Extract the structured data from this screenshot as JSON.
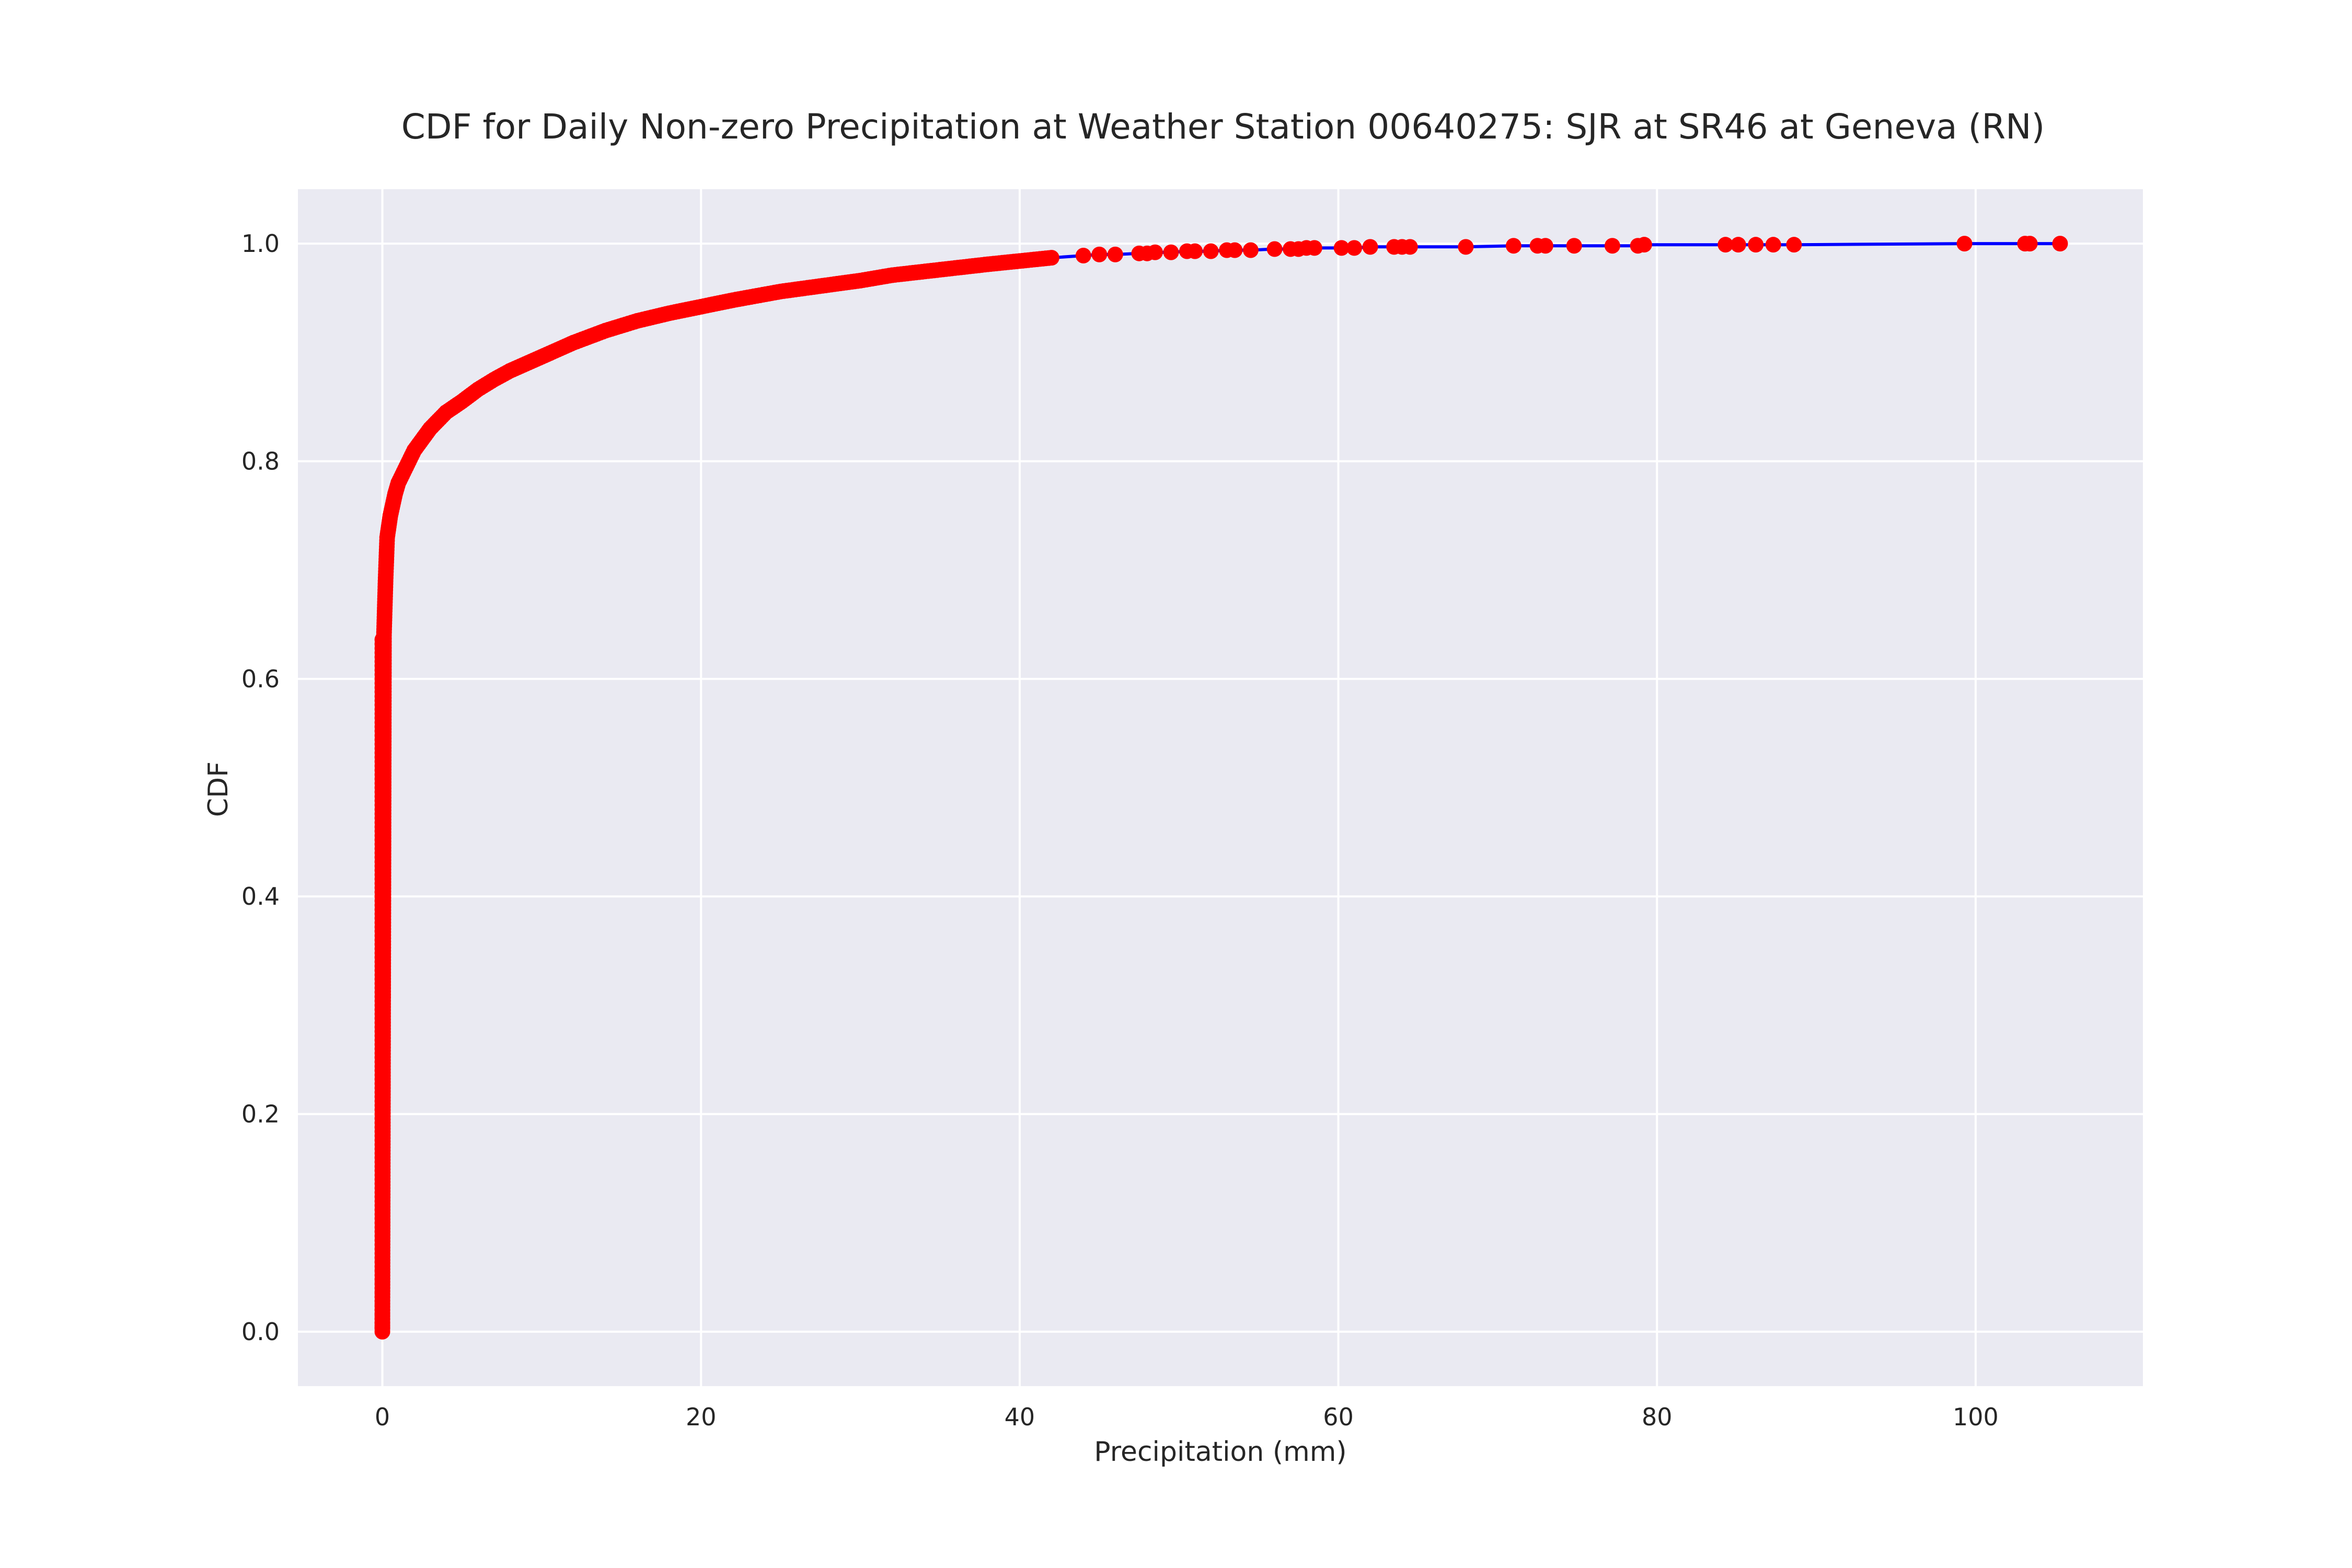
{
  "chart_data": {
    "type": "line",
    "title": "CDF for Daily Non-zero Precipitation at Weather Station 00640275: SJR at SR46 at Geneva (RN)",
    "xlabel": "Precipitation (mm)",
    "ylabel": "CDF",
    "xlim": [
      -5.3,
      110.5
    ],
    "ylim": [
      -0.05,
      1.05
    ],
    "grid": true,
    "x_ticks": [
      "0",
      "20",
      "40",
      "60",
      "80",
      "100"
    ],
    "y_ticks": [
      "0.0",
      "0.2",
      "0.4",
      "0.6",
      "0.8",
      "1.0"
    ],
    "colors": {
      "background": "#eaeaf2",
      "line": "#0000ff",
      "marker": "#ff0000"
    },
    "series": [
      {
        "x": [
          0,
          0.1,
          0.2,
          0.3,
          0.5,
          0.8,
          1.0,
          1.5,
          2.0,
          2.5,
          3.0,
          4.0,
          5.0,
          6.0,
          7.0,
          8.0,
          10.0,
          12.0,
          14.0,
          16.0,
          18.0,
          20.0,
          22.0,
          25.0,
          28.0,
          30.0,
          32.0,
          35.0,
          38.0,
          40.0,
          42.0,
          44.0,
          45.0,
          46.0,
          47.5,
          48.0,
          48.5,
          49.5,
          50.5,
          51.0,
          52.0,
          53.0,
          53.5,
          54.5,
          56.0,
          57.0,
          57.5,
          58.0,
          58.5,
          60.2,
          61.0,
          62.0,
          63.5,
          64.0,
          64.5,
          68.0,
          71.0,
          72.5,
          73.0,
          74.8,
          77.2,
          78.8,
          79.2,
          84.3,
          85.1,
          86.2,
          87.3,
          88.6,
          99.3,
          103.1,
          103.4,
          105.3
        ],
        "y": [
          0.0,
          0.64,
          0.69,
          0.73,
          0.75,
          0.77,
          0.78,
          0.795,
          0.81,
          0.82,
          0.83,
          0.845,
          0.855,
          0.866,
          0.875,
          0.883,
          0.896,
          0.909,
          0.92,
          0.929,
          0.936,
          0.942,
          0.948,
          0.956,
          0.962,
          0.966,
          0.971,
          0.976,
          0.981,
          0.984,
          0.987,
          0.989,
          0.99,
          0.99,
          0.991,
          0.991,
          0.992,
          0.992,
          0.993,
          0.993,
          0.993,
          0.994,
          0.994,
          0.994,
          0.995,
          0.995,
          0.995,
          0.996,
          0.996,
          0.996,
          0.996,
          0.997,
          0.997,
          0.997,
          0.997,
          0.997,
          0.998,
          0.998,
          0.998,
          0.998,
          0.998,
          0.998,
          0.999,
          0.999,
          0.999,
          0.999,
          0.999,
          0.999,
          1.0,
          1.0,
          1.0,
          1.0
        ]
      }
    ]
  }
}
